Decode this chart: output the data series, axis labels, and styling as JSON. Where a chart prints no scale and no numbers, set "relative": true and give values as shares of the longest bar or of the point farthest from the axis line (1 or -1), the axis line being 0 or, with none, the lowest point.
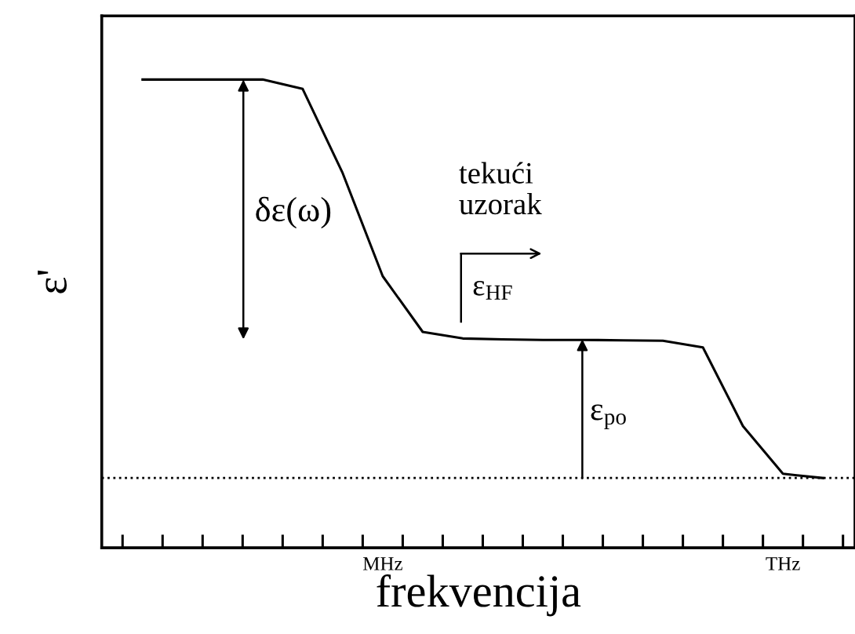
{
  "chart_data": {
    "type": "line",
    "relative": true,
    "xlabel": "frekvencija",
    "ylabel": "ε'",
    "categories": [
      null,
      null,
      null,
      null,
      null,
      null,
      "MHz",
      null,
      null,
      null,
      null,
      null,
      null,
      null,
      null,
      null,
      "THz",
      null
    ],
    "series": [
      {
        "color": "#000000",
        "values": [
          1,
          1,
          1,
          1,
          0.98,
          0.8,
          0.58,
          0.461,
          0.447,
          0.445,
          0.444,
          0.444,
          0.443,
          0.442,
          0.428,
          0.26,
          0.158,
          0.149
        ]
      }
    ],
    "ref_lines": [
      {
        "axis": "y",
        "value": 0.149,
        "label": null,
        "color": "#000000",
        "line_style": "dotted"
      }
    ],
    "annotations": [
      "δε(ω)",
      "ε$_{po}$",
      "tekući\nuzorak",
      "ε$_{HF}$"
    ],
    "grid": false,
    "marker": "none",
    "line_style": "solid"
  }
}
